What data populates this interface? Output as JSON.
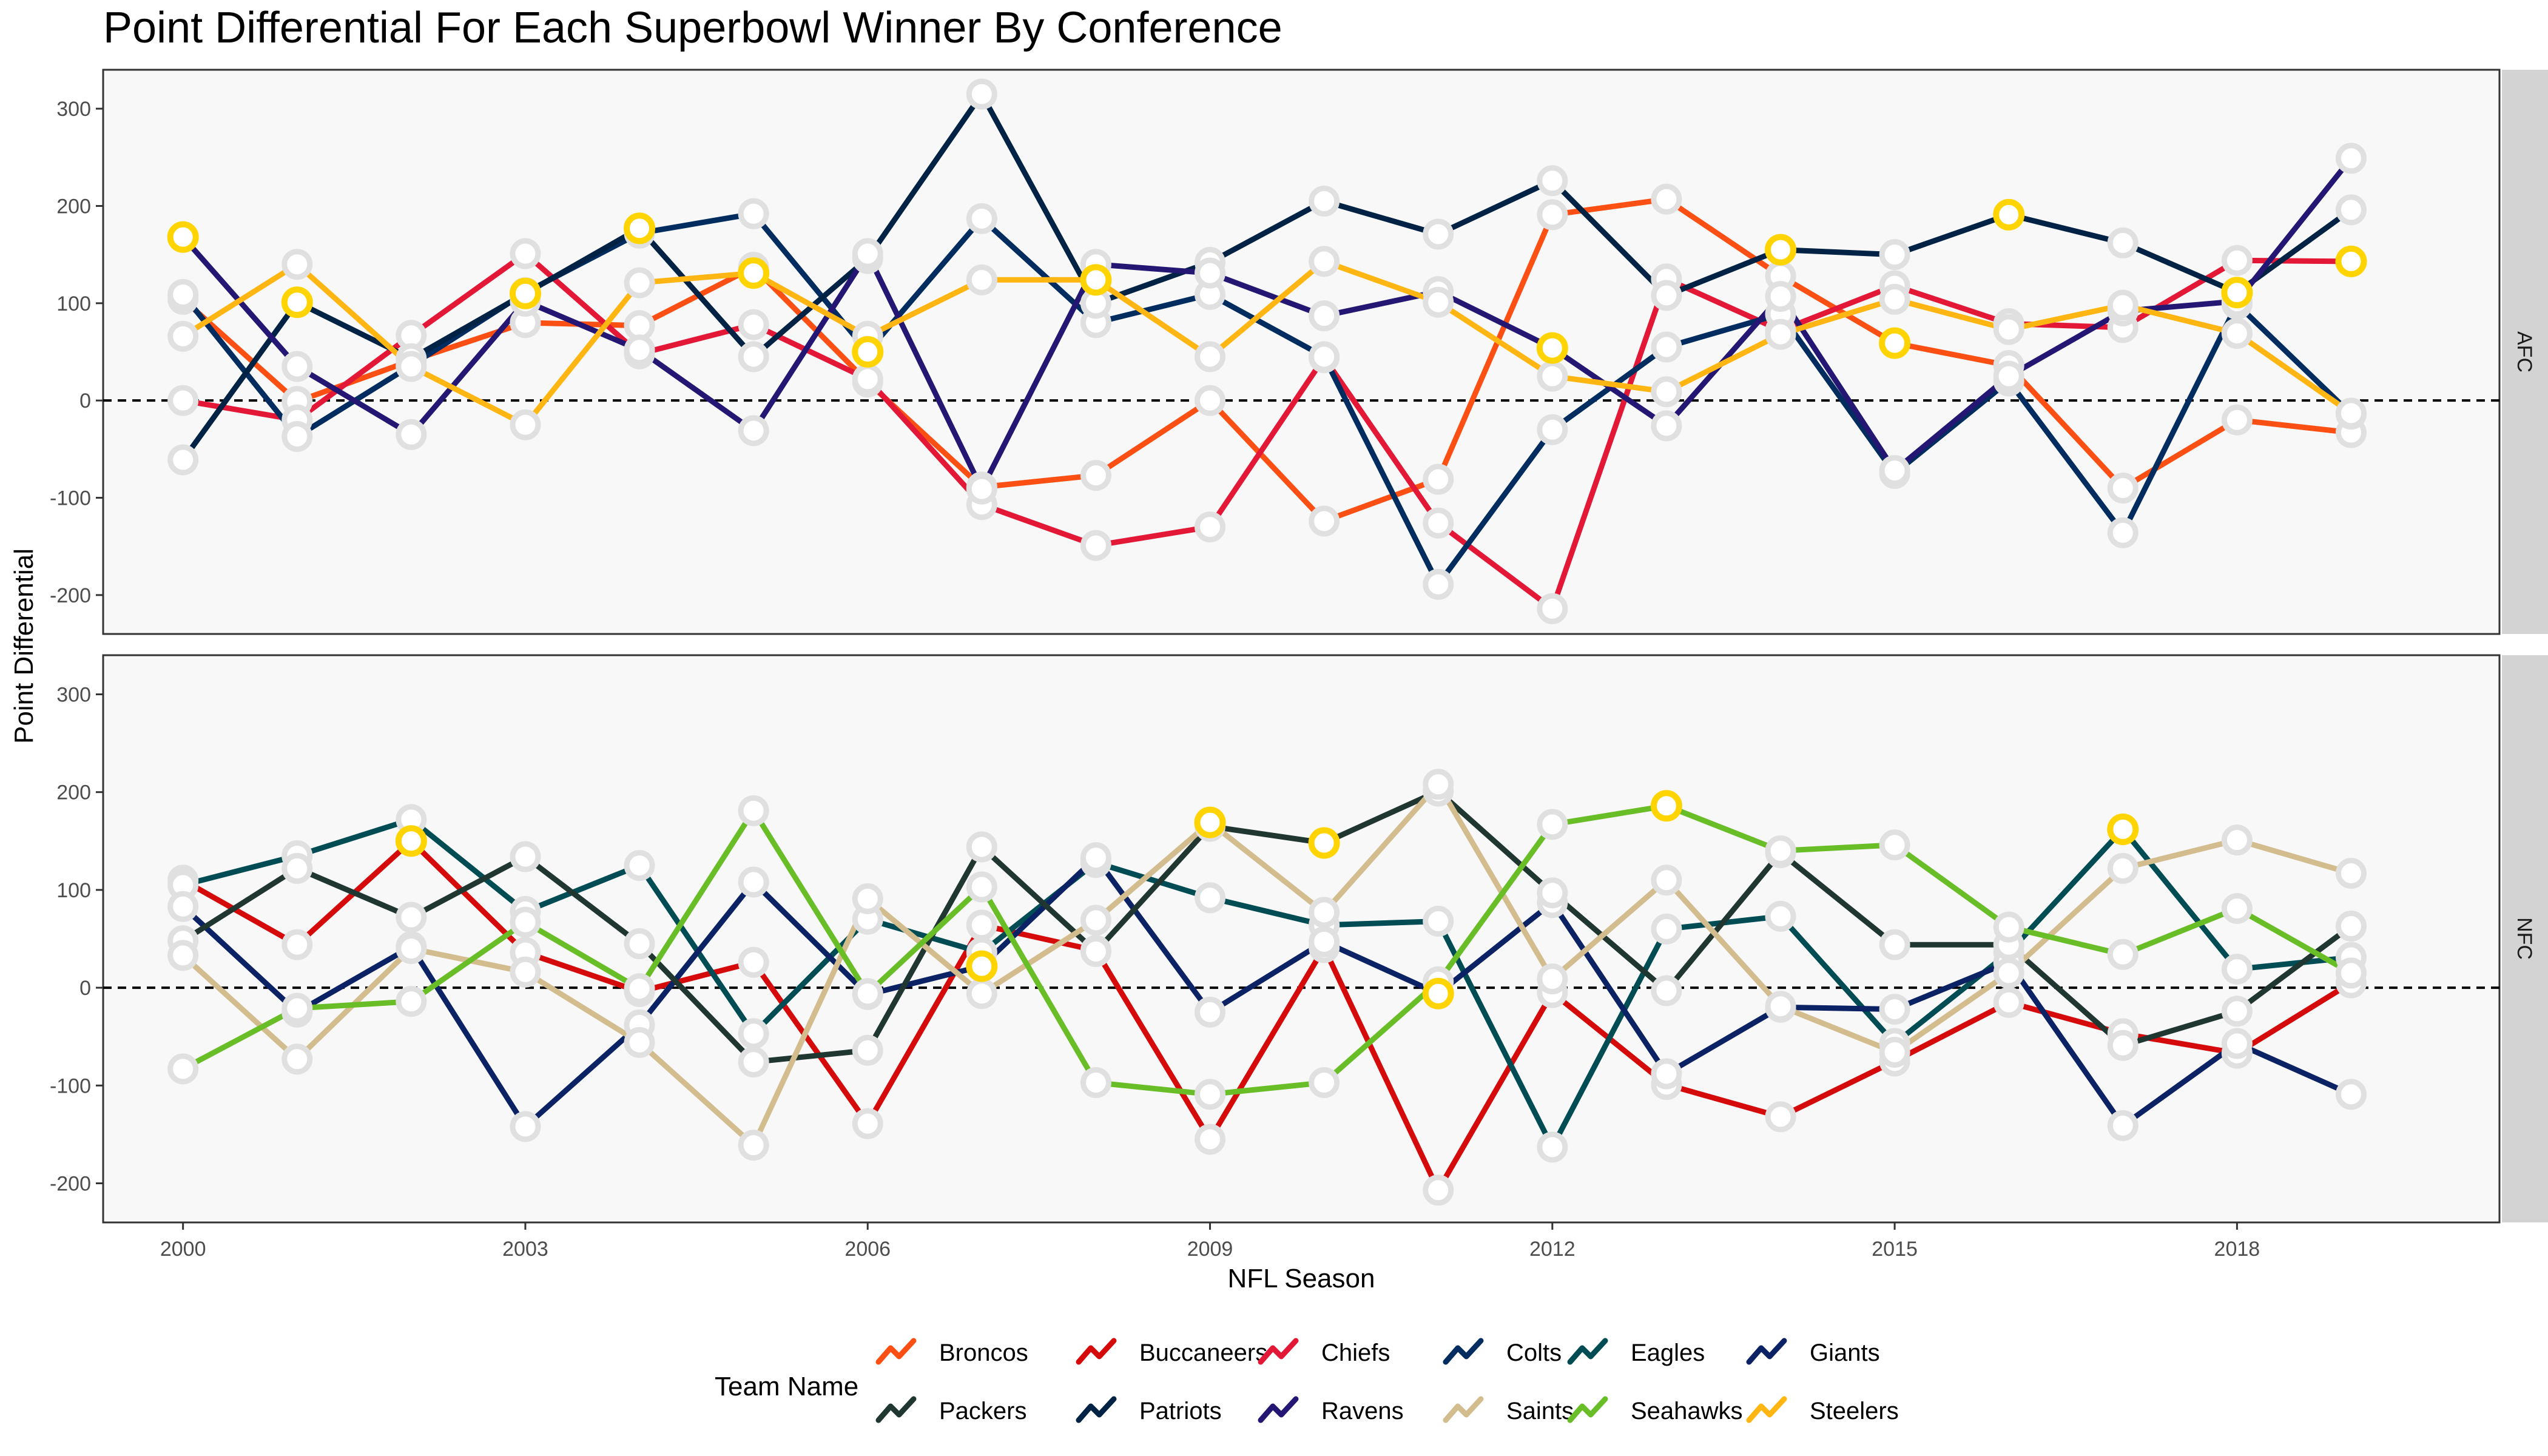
{
  "chart_data": {
    "type": "line",
    "title": "Point Differential For Each Superbowl Winner By Conference",
    "xlabel": "NFL Season",
    "ylabel": "Point Differential",
    "xlim": [
      1999.3,
      2020.3
    ],
    "ylim": [
      -240,
      340
    ],
    "x_ticks": [
      2000,
      2003,
      2006,
      2009,
      2012,
      2015,
      2018
    ],
    "y_ticks": [
      -200,
      -100,
      0,
      100,
      200,
      300
    ],
    "reference_line": 0,
    "legend": {
      "title": "Team Name",
      "placement": "bottom"
    },
    "colors": {
      "highlight_point": "#FFD400",
      "normal_point_stroke": "#E0E0E0",
      "panel_background": "#F8F8F8",
      "strip_background": "#D3D3D3"
    },
    "teams": [
      {
        "name": "Broncos",
        "color": "#FB4F14"
      },
      {
        "name": "Buccaneers",
        "color": "#D50A0A"
      },
      {
        "name": "Chiefs",
        "color": "#E31837"
      },
      {
        "name": "Colts",
        "color": "#002C5F"
      },
      {
        "name": "Eagles",
        "color": "#004C54"
      },
      {
        "name": "Giants",
        "color": "#0B2265"
      },
      {
        "name": "Packers",
        "color": "#203731"
      },
      {
        "name": "Patriots",
        "color": "#002244"
      },
      {
        "name": "Ravens",
        "color": "#241773"
      },
      {
        "name": "Saints",
        "color": "#D3BC8D"
      },
      {
        "name": "Seahawks",
        "color": "#69BE28"
      },
      {
        "name": "Steelers",
        "color": "#FFB612"
      }
    ],
    "panels": [
      {
        "label": "AFC",
        "series": [
          {
            "name": "Broncos",
            "x": [
              2000,
              2001,
              2002,
              2003,
              2004,
              2005,
              2006,
              2007,
              2008,
              2009,
              2010,
              2011,
              2012,
              2013,
              2014,
              2015,
              2016,
              2017,
              2018,
              2019
            ],
            "values": [
              104,
              -1,
              41,
              80,
              77,
              137,
              19,
              -89,
              -77,
              0,
              -124,
              -81,
              191,
              207,
              128,
              59,
              36,
              -90,
              -20,
              -33
            ],
            "winner_years": [
              2015
            ]
          },
          {
            "name": "Chiefs",
            "x": [
              2000,
              2001,
              2002,
              2003,
              2004,
              2005,
              2006,
              2007,
              2008,
              2009,
              2010,
              2011,
              2012,
              2013,
              2014,
              2015,
              2016,
              2017,
              2018,
              2019
            ],
            "values": [
              0,
              -20,
              67,
              151,
              48,
              78,
              22,
              -107,
              -149,
              -130,
              44,
              -126,
              -214,
              125,
              72,
              118,
              79,
              75,
              144,
              143
            ],
            "winner_years": [
              2019
            ]
          },
          {
            "name": "Colts",
            "x": [
              2000,
              2001,
              2002,
              2003,
              2004,
              2005,
              2006,
              2007,
              2008,
              2009,
              2010,
              2011,
              2012,
              2013,
              2014,
              2015,
              2016,
              2017,
              2018,
              2019
            ],
            "values": [
              109,
              -37,
              36,
              111,
              172,
              192,
              50,
              187,
              80,
              109,
              45,
              -189,
              -30,
              55,
              89,
              -75,
              20,
              -136,
              99,
              -14
            ],
            "winner_years": [
              2006
            ]
          },
          {
            "name": "Patriots",
            "x": [
              2000,
              2001,
              2002,
              2003,
              2004,
              2005,
              2006,
              2007,
              2008,
              2009,
              2010,
              2011,
              2012,
              2013,
              2014,
              2015,
              2016,
              2017,
              2018,
              2019
            ],
            "values": [
              -61,
              101,
              43,
              110,
              177,
              45,
              146,
              315,
              100,
              142,
              205,
              171,
              226,
              108,
              155,
              150,
              191,
              162,
              111,
              196
            ],
            "winner_years": [
              2001,
              2003,
              2004,
              2014,
              2016,
              2018
            ]
          },
          {
            "name": "Ravens",
            "x": [
              2000,
              2001,
              2002,
              2003,
              2004,
              2005,
              2006,
              2007,
              2008,
              2009,
              2010,
              2011,
              2012,
              2013,
              2014,
              2015,
              2016,
              2017,
              2018,
              2019
            ],
            "values": [
              168,
              35,
              -35,
              102,
              52,
              -31,
              151,
              -91,
              140,
              131,
              87,
              112,
              54,
              -26,
              107,
              -72,
              25,
              92,
              102,
              249
            ],
            "winner_years": [
              2000,
              2012
            ]
          },
          {
            "name": "Steelers",
            "x": [
              2000,
              2001,
              2002,
              2003,
              2004,
              2005,
              2006,
              2007,
              2008,
              2009,
              2010,
              2011,
              2012,
              2013,
              2014,
              2015,
              2016,
              2017,
              2018,
              2019
            ],
            "values": [
              66,
              140,
              35,
              -25,
              121,
              131,
              66,
              124,
              124,
              45,
              143,
              101,
              25,
              9,
              68,
              104,
              73,
              98,
              69,
              -13
            ],
            "winner_years": [
              2005,
              2008
            ]
          }
        ]
      },
      {
        "label": "NFC",
        "series": [
          {
            "name": "Buccaneers",
            "x": [
              2000,
              2001,
              2002,
              2003,
              2004,
              2005,
              2006,
              2007,
              2008,
              2009,
              2010,
              2011,
              2012,
              2013,
              2014,
              2015,
              2016,
              2017,
              2018,
              2019
            ],
            "values": [
              110,
              44,
              150,
              36,
              -4,
              26,
              -139,
              64,
              38,
              -155,
              41,
              -207,
              -5,
              -99,
              -132,
              -75,
              -15,
              -47,
              -67,
              5
            ],
            "winner_years": [
              2002
            ]
          },
          {
            "name": "Eagles",
            "x": [
              2000,
              2001,
              2002,
              2003,
              2004,
              2005,
              2006,
              2007,
              2008,
              2009,
              2010,
              2011,
              2012,
              2013,
              2014,
              2015,
              2016,
              2017,
              2018,
              2019
            ],
            "values": [
              105,
              135,
              172,
              78,
              125,
              -47,
              70,
              36,
              128,
              92,
              64,
              68,
              -163,
              60,
              73,
              -57,
              36,
              162,
              19,
              31
            ],
            "winner_years": [
              2017
            ]
          },
          {
            "name": "Giants",
            "x": [
              2000,
              2001,
              2002,
              2003,
              2004,
              2005,
              2006,
              2007,
              2008,
              2009,
              2010,
              2011,
              2012,
              2013,
              2014,
              2015,
              2016,
              2017,
              2018,
              2019
            ],
            "values": [
              83,
              -25,
              42,
              -142,
              -38,
              108,
              -7,
              22,
              133,
              -25,
              47,
              -6,
              87,
              -88,
              -20,
              -22,
              26,
              -141,
              -57,
              -109
            ],
            "winner_years": [
              2007,
              2011
            ]
          },
          {
            "name": "Packers",
            "x": [
              2000,
              2001,
              2002,
              2003,
              2004,
              2005,
              2006,
              2007,
              2008,
              2009,
              2010,
              2011,
              2012,
              2013,
              2014,
              2015,
              2016,
              2017,
              2018,
              2019
            ],
            "values": [
              48,
              122,
              72,
              134,
              45,
              -76,
              -64,
              144,
              37,
              165,
              148,
              201,
              97,
              -3,
              138,
              44,
              44,
              -59,
              -24,
              63
            ],
            "winner_years": [
              2010
            ]
          },
          {
            "name": "Saints",
            "x": [
              2000,
              2001,
              2002,
              2003,
              2004,
              2005,
              2006,
              2007,
              2008,
              2009,
              2010,
              2011,
              2012,
              2013,
              2014,
              2015,
              2016,
              2017,
              2018,
              2019
            ],
            "values": [
              33,
              -73,
              40,
              16,
              -56,
              -161,
              91,
              -6,
              69,
              169,
              77,
              208,
              9,
              110,
              -19,
              -66,
              15,
              122,
              151,
              117
            ],
            "winner_years": [
              2009
            ]
          },
          {
            "name": "Seahawks",
            "x": [
              2000,
              2001,
              2002,
              2003,
              2004,
              2005,
              2006,
              2007,
              2008,
              2009,
              2010,
              2011,
              2012,
              2013,
              2014,
              2015,
              2016,
              2017,
              2018,
              2019
            ],
            "values": [
              -83,
              -21,
              -14,
              67,
              -1,
              181,
              -6,
              103,
              -97,
              -109,
              -97,
              6,
              167,
              186,
              140,
              146,
              62,
              34,
              81,
              15
            ],
            "winner_years": [
              2013
            ]
          }
        ]
      }
    ]
  }
}
